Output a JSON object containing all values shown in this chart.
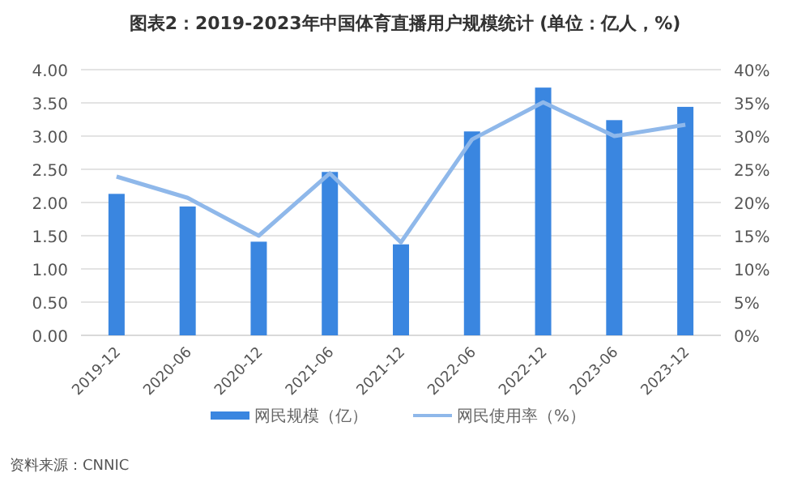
{
  "chart_data": {
    "type": "bar",
    "title": "图表2：2019-2023年中国体育直播用户规模统计 (单位：亿人，%)",
    "categories": [
      "2019-12",
      "2020-06",
      "2020-12",
      "2021-06",
      "2021-12",
      "2022-06",
      "2022-12",
      "2023-06",
      "2023-12"
    ],
    "series": [
      {
        "name": "网民规模（亿）",
        "color": "#3a86e0",
        "values": [
          2.13,
          1.94,
          1.41,
          2.46,
          1.37,
          3.07,
          3.73,
          3.24,
          3.44
        ]
      },
      {
        "name": "网民使用率（%）",
        "type": "line",
        "axis": "y2",
        "color": "#8fb8ea",
        "values": [
          23.9,
          20.7,
          15.0,
          24.4,
          14.0,
          29.5,
          35.1,
          30.0,
          31.7
        ]
      }
    ],
    "ylim": [
      0,
      4
    ],
    "yticks": [
      {
        "value": 0,
        "label": "0.00"
      },
      {
        "value": 0.5,
        "label": "0.50"
      },
      {
        "value": 1,
        "label": "1.00"
      },
      {
        "value": 1.5,
        "label": "1.50"
      },
      {
        "value": 2,
        "label": "2.00"
      },
      {
        "value": 2.5,
        "label": "2.50"
      },
      {
        "value": 3,
        "label": "3.00"
      },
      {
        "value": 3.5,
        "label": "3.50"
      },
      {
        "value": 4,
        "label": "4.00"
      }
    ],
    "y2lim": [
      0,
      40
    ],
    "y2ticks": [
      {
        "value": 0,
        "label": "0%"
      },
      {
        "value": 5,
        "label": "5%"
      },
      {
        "value": 10,
        "label": "10%"
      },
      {
        "value": 15,
        "label": "15%"
      },
      {
        "value": 20,
        "label": "20%"
      },
      {
        "value": 25,
        "label": "25%"
      },
      {
        "value": 30,
        "label": "30%"
      },
      {
        "value": 35,
        "label": "35%"
      },
      {
        "value": 40,
        "label": "40%"
      }
    ],
    "grid": "y",
    "legend": "bottom",
    "marker": "none",
    "line_style": "solid",
    "annotations": [
      "资料来源：CNNIC"
    ]
  }
}
